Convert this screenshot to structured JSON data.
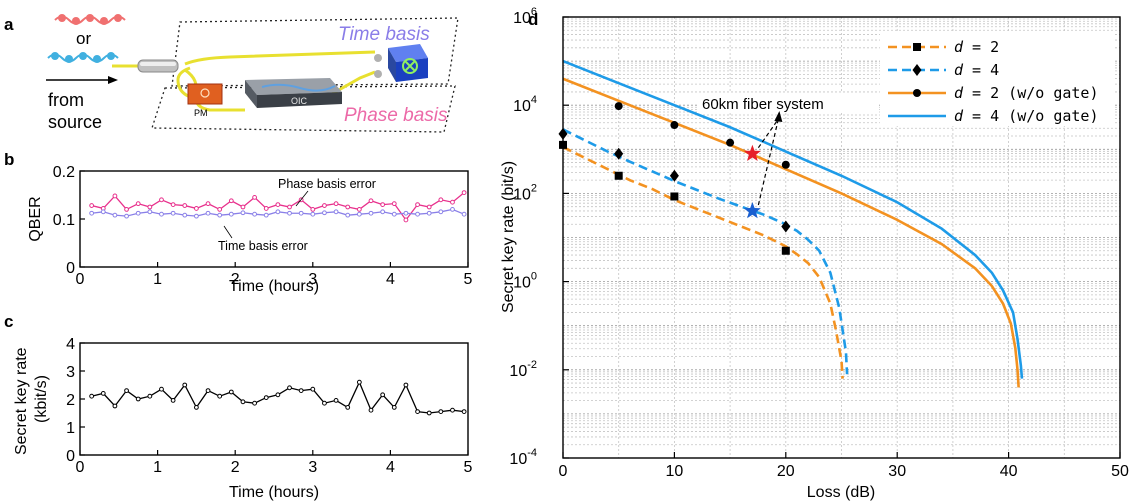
{
  "panel_a": {
    "label": "a",
    "or_text": "or",
    "from_source": [
      "from",
      "source"
    ],
    "time_basis": "Time basis",
    "phase_basis": "Phase basis",
    "pm_label": "PM",
    "oic_label": "OIC",
    "colors": {
      "red_photon": "#f07070",
      "blue_photon": "#40b0e0",
      "fiber": "#e8e030",
      "time_basis": "#8a7de8",
      "phase_basis": "#ec6aa8",
      "detector": "#2050d0"
    }
  },
  "chart_data": [
    {
      "id": "b",
      "panel_label": "b",
      "type": "line",
      "xlabel": "Time (hours)",
      "ylabel": "QBER",
      "xlim": [
        0,
        5
      ],
      "ylim": [
        0,
        0.2
      ],
      "xticks": [
        "0",
        "1",
        "2",
        "3",
        "4",
        "5"
      ],
      "yticks": [
        "0",
        "0.1",
        "0.2"
      ],
      "x": [
        0.15,
        0.3,
        0.45,
        0.6,
        0.75,
        0.9,
        1.05,
        1.2,
        1.35,
        1.5,
        1.65,
        1.8,
        1.95,
        2.1,
        2.25,
        2.4,
        2.55,
        2.7,
        2.85,
        3.0,
        3.15,
        3.3,
        3.45,
        3.6,
        3.75,
        3.9,
        4.05,
        4.2,
        4.35,
        4.5,
        4.65,
        4.8,
        4.95
      ],
      "series": [
        {
          "name": "Phase basis error",
          "color": "#e8308c",
          "values": [
            0.128,
            0.122,
            0.148,
            0.12,
            0.132,
            0.125,
            0.14,
            0.13,
            0.128,
            0.122,
            0.132,
            0.12,
            0.138,
            0.125,
            0.145,
            0.122,
            0.13,
            0.125,
            0.14,
            0.12,
            0.128,
            0.132,
            0.125,
            0.12,
            0.138,
            0.13,
            0.132,
            0.098,
            0.13,
            0.125,
            0.14,
            0.135,
            0.155
          ]
        },
        {
          "name": "Time basis error",
          "color": "#8a80e8",
          "values": [
            0.112,
            0.115,
            0.108,
            0.106,
            0.112,
            0.115,
            0.11,
            0.112,
            0.108,
            0.106,
            0.112,
            0.108,
            0.11,
            0.113,
            0.11,
            0.108,
            0.115,
            0.112,
            0.112,
            0.11,
            0.113,
            0.115,
            0.108,
            0.11,
            0.112,
            0.115,
            0.11,
            0.112,
            0.11,
            0.112,
            0.115,
            0.12,
            0.11
          ]
        }
      ]
    },
    {
      "id": "c",
      "panel_label": "c",
      "type": "line",
      "xlabel": "Time (hours)",
      "ylabel": [
        "Secret key rate",
        "(kbit/s)"
      ],
      "xlim": [
        0,
        5
      ],
      "ylim": [
        0,
        4
      ],
      "xticks": [
        "0",
        "1",
        "2",
        "3",
        "4",
        "5"
      ],
      "yticks": [
        "0",
        "1",
        "2",
        "3",
        "4"
      ],
      "x": [
        0.15,
        0.3,
        0.45,
        0.6,
        0.75,
        0.9,
        1.05,
        1.2,
        1.35,
        1.5,
        1.65,
        1.8,
        1.95,
        2.1,
        2.25,
        2.4,
        2.55,
        2.7,
        2.85,
        3.0,
        3.15,
        3.3,
        3.45,
        3.6,
        3.75,
        3.9,
        4.05,
        4.2,
        4.35,
        4.5,
        4.65,
        4.8,
        4.95
      ],
      "series": [
        {
          "name": "",
          "color": "#000000",
          "values": [
            2.1,
            2.2,
            1.75,
            2.3,
            2.0,
            2.1,
            2.35,
            1.95,
            2.5,
            1.7,
            2.3,
            2.1,
            2.25,
            1.9,
            1.85,
            2.05,
            2.15,
            2.4,
            2.3,
            2.35,
            1.85,
            1.95,
            1.7,
            2.6,
            1.6,
            2.15,
            1.7,
            2.5,
            1.55,
            1.5,
            1.55,
            1.6,
            1.55
          ]
        }
      ]
    },
    {
      "id": "d",
      "panel_label": "d",
      "type": "line",
      "xlabel": "Loss (dB)",
      "ylabel": "Secret key rate (bit/s)",
      "xlim": [
        0,
        50
      ],
      "ylim_log10": [
        -4,
        6
      ],
      "yscale": "log",
      "grid": true,
      "legend": "top-right",
      "xticks": [
        "0",
        "10",
        "20",
        "30",
        "40",
        "50"
      ],
      "ytick_mantissa": "10",
      "ytick_exponents": [
        "-4",
        "-2",
        "0",
        "2",
        "4",
        "6"
      ],
      "series": [
        {
          "name": "d = 2",
          "legend_var": "d",
          "legend_rest": " = 2",
          "style": "dashed",
          "color": "#f39221",
          "marker": "square",
          "curve_x": [
            0,
            2,
            4,
            6,
            8,
            10,
            12,
            14,
            16,
            18,
            20,
            21,
            22,
            23,
            24,
            24.5,
            25.0,
            25.1
          ],
          "curve_log10y": [
            3.05,
            2.8,
            2.55,
            2.3,
            2.1,
            1.85,
            1.65,
            1.45,
            1.25,
            1.05,
            0.8,
            0.62,
            0.42,
            0.1,
            -0.5,
            -1.1,
            -1.8,
            -2.2
          ],
          "points_x": [
            0,
            5,
            10,
            20
          ],
          "points_log10y": [
            3.1,
            2.4,
            1.93,
            0.7
          ]
        },
        {
          "name": "d = 4",
          "legend_var": "d",
          "legend_rest": " = 4",
          "style": "dashed",
          "color": "#1e9be8",
          "marker": "diamond",
          "curve_x": [
            0,
            2,
            4,
            6,
            8,
            10,
            12,
            14,
            16,
            18,
            20,
            21,
            22,
            23,
            24,
            24.8,
            25.4,
            25.5
          ],
          "curve_log10y": [
            3.45,
            3.2,
            2.95,
            2.72,
            2.5,
            2.28,
            2.08,
            1.88,
            1.7,
            1.52,
            1.3,
            1.15,
            0.95,
            0.7,
            0.2,
            -0.6,
            -1.6,
            -2.1
          ],
          "points_x": [
            0,
            5,
            10,
            20
          ],
          "points_log10y": [
            3.35,
            2.9,
            2.4,
            1.25
          ]
        },
        {
          "name": "d = 2 (w/o gate)",
          "legend_var": "d",
          "legend_rest": " = 2 (w/o gate)",
          "style": "solid",
          "color": "#f39221",
          "marker": "circle",
          "curve_x": [
            0,
            5,
            10,
            15,
            20,
            25,
            30,
            34,
            37,
            38.5,
            39.5,
            40.2,
            40.6,
            40.8,
            40.9
          ],
          "curve_log10y": [
            4.6,
            4.1,
            3.6,
            3.1,
            2.55,
            2.0,
            1.4,
            0.85,
            0.3,
            -0.1,
            -0.5,
            -0.95,
            -1.5,
            -2.0,
            -2.4
          ],
          "points_x": [
            5,
            10,
            15,
            20
          ],
          "points_log10y": [
            3.98,
            3.55,
            3.15,
            2.65
          ]
        },
        {
          "name": "d = 4 (w/o gate)",
          "legend_var": "d",
          "legend_rest": " = 4 (w/o gate)",
          "style": "solid",
          "color": "#1e9be8",
          "marker": "",
          "curve_x": [
            0,
            5,
            10,
            15,
            20,
            25,
            30,
            34,
            37,
            38.5,
            39.5,
            40.4,
            40.8,
            41.1,
            41.2
          ],
          "curve_log10y": [
            5.0,
            4.5,
            4.0,
            3.5,
            2.95,
            2.4,
            1.8,
            1.2,
            0.6,
            0.2,
            -0.2,
            -0.7,
            -1.3,
            -1.9,
            -2.2
          ]
        }
      ],
      "annotation": {
        "text": "60km fiber system",
        "stars": [
          {
            "x": 17,
            "log10y": 2.9,
            "color": "#e6202a"
          },
          {
            "x": 17,
            "log10y": 1.6,
            "color": "#1a5fd0"
          }
        ]
      }
    }
  ]
}
